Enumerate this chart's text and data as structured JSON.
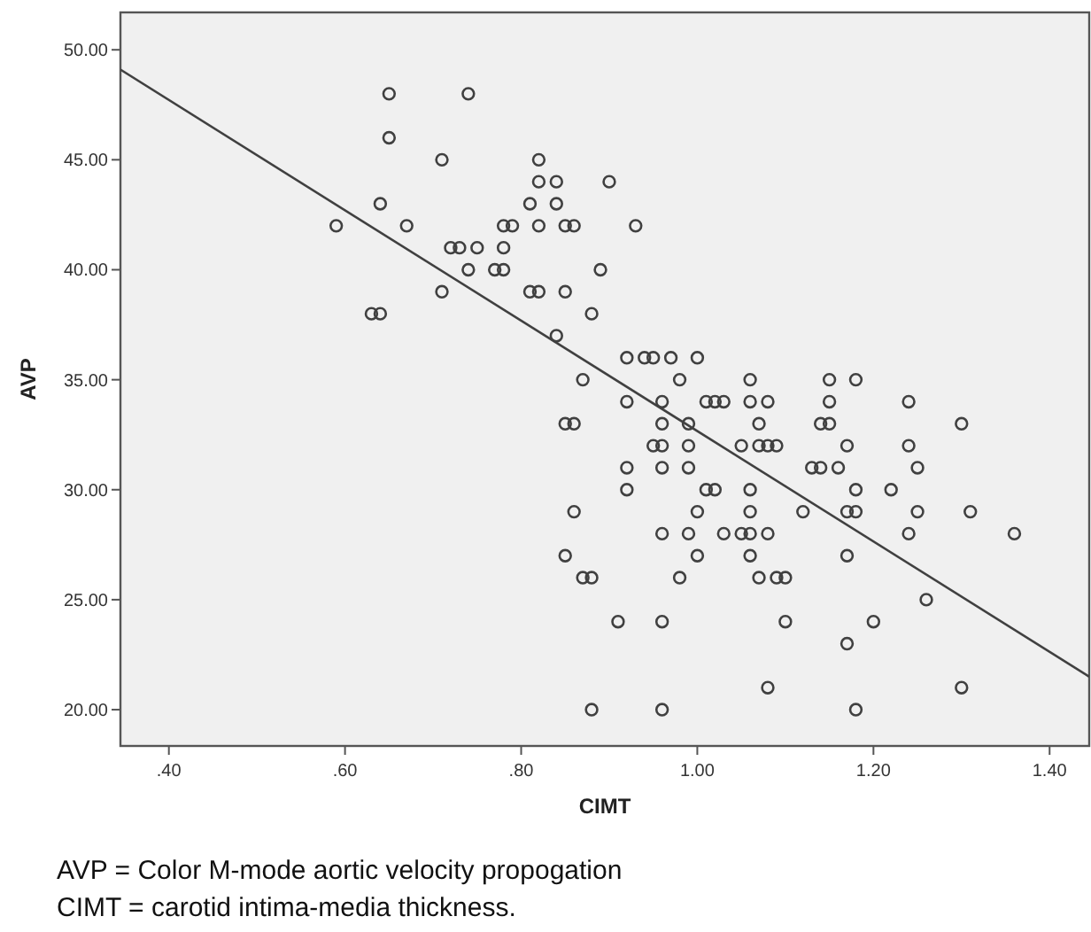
{
  "chart_data": {
    "type": "scatter",
    "xlabel": "CIMT",
    "ylabel": "AVP",
    "xlim": [
      0.345,
      1.445
    ],
    "ylim": [
      18.35,
      51.7
    ],
    "xticks": [
      {
        "value": 0.4,
        "label": ".40"
      },
      {
        "value": 0.6,
        "label": ".60"
      },
      {
        "value": 0.8,
        "label": ".80"
      },
      {
        "value": 1.0,
        "label": "1.00"
      },
      {
        "value": 1.2,
        "label": "1.20"
      },
      {
        "value": 1.4,
        "label": "1.40"
      }
    ],
    "yticks": [
      {
        "value": 20,
        "label": "20.00"
      },
      {
        "value": 25,
        "label": "25.00"
      },
      {
        "value": 30,
        "label": "30.00"
      },
      {
        "value": 35,
        "label": "35.00"
      },
      {
        "value": 40,
        "label": "40.00"
      },
      {
        "value": 45,
        "label": "45.00"
      },
      {
        "value": 50,
        "label": "50.00"
      }
    ],
    "grid": false,
    "series": [
      {
        "color": "#404040",
        "marker": "circle",
        "x": [
          0.65,
          0.74,
          0.65,
          0.71,
          0.82,
          0.82,
          0.84,
          0.9,
          0.64,
          0.81,
          0.84,
          0.59,
          0.67,
          0.78,
          0.79,
          0.82,
          0.85,
          0.86,
          0.93,
          0.72,
          0.73,
          0.75,
          0.78,
          0.74,
          0.77,
          0.78,
          0.89,
          0.71,
          0.81,
          0.82,
          0.85,
          0.63,
          0.64,
          0.88,
          0.84,
          0.92,
          0.94,
          0.95,
          0.97,
          1.0,
          0.87,
          0.98,
          1.06,
          1.15,
          1.18,
          0.92,
          0.96,
          1.01,
          1.02,
          1.03,
          1.06,
          1.08,
          1.15,
          1.24,
          0.85,
          0.86,
          0.96,
          0.99,
          1.07,
          1.14,
          1.15,
          1.3,
          0.95,
          0.96,
          0.99,
          1.05,
          1.07,
          1.08,
          1.09,
          1.17,
          1.24,
          0.92,
          0.96,
          0.99,
          1.13,
          1.14,
          1.16,
          1.25,
          0.92,
          1.01,
          1.02,
          1.06,
          1.18,
          1.22,
          0.86,
          1.0,
          1.06,
          1.12,
          1.17,
          1.18,
          1.25,
          1.31,
          0.96,
          0.99,
          1.03,
          1.05,
          1.06,
          1.08,
          1.24,
          1.36,
          0.85,
          1.0,
          1.06,
          1.17,
          0.87,
          0.88,
          0.98,
          1.07,
          1.09,
          1.1,
          1.26,
          0.91,
          0.96,
          1.1,
          1.2,
          1.17,
          1.08,
          1.3,
          0.88,
          0.96,
          1.18
        ],
        "values": [
          48,
          48,
          46,
          45,
          45,
          44,
          44,
          44,
          43,
          43,
          43,
          42,
          42,
          42,
          42,
          42,
          42,
          42,
          42,
          41,
          41,
          41,
          41,
          40,
          40,
          40,
          40,
          39,
          39,
          39,
          39,
          38,
          38,
          38,
          37,
          36,
          36,
          36,
          36,
          36,
          35,
          35,
          35,
          35,
          35,
          34,
          34,
          34,
          34,
          34,
          34,
          34,
          34,
          34,
          33,
          33,
          33,
          33,
          33,
          33,
          33,
          33,
          32,
          32,
          32,
          32,
          32,
          32,
          32,
          32,
          32,
          31,
          31,
          31,
          31,
          31,
          31,
          31,
          30,
          30,
          30,
          30,
          30,
          30,
          29,
          29,
          29,
          29,
          29,
          29,
          29,
          29,
          28,
          28,
          28,
          28,
          28,
          28,
          28,
          28,
          27,
          27,
          27,
          27,
          26,
          26,
          26,
          26,
          26,
          26,
          25,
          24,
          24,
          24,
          24,
          23,
          21,
          21,
          20,
          20,
          20
        ]
      },
      {
        "type": "line",
        "color": "#404040",
        "marker": "none",
        "line_style": "solid",
        "x": [
          0.345,
          1.445
        ],
        "values": [
          49.1,
          21.5
        ]
      }
    ],
    "annotations": [
      "AVP = Color M-mode aortic velocity propogation",
      "CIMT = carotid intima-media thickness."
    ]
  }
}
